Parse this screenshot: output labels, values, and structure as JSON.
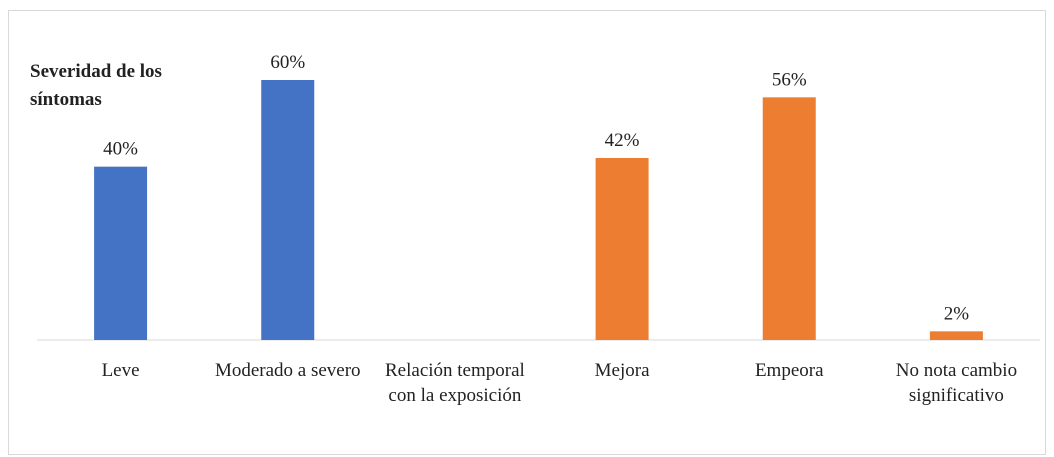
{
  "chart_data": {
    "type": "bar",
    "title": "Severidad de los síntomas",
    "categories": [
      "Leve",
      "Moderado a severo",
      "Relación temporal con la exposición",
      "Mejora",
      "Empeora",
      "No nota cambio significativo"
    ],
    "values": [
      40,
      60,
      null,
      42,
      56,
      2
    ],
    "value_labels": [
      "40%",
      "60%",
      null,
      "42%",
      "56%",
      "2%"
    ],
    "colors": [
      "#4472c4",
      "#4472c4",
      null,
      "#ed7d31",
      "#ed7d31",
      "#ed7d31"
    ]
  }
}
